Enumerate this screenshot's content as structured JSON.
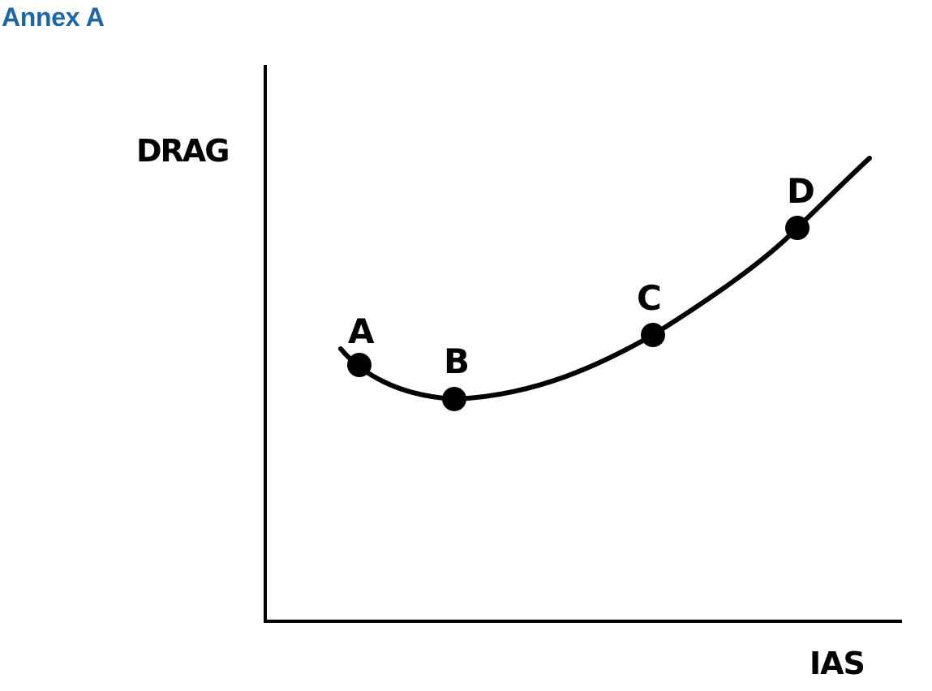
{
  "heading": "Annex A",
  "diagram": {
    "y_axis_label": "DRAG",
    "x_axis_label": "IAS",
    "curve_color": "#000000",
    "points": [
      {
        "label": "A"
      },
      {
        "label": "B"
      },
      {
        "label": "C"
      },
      {
        "label": "D"
      }
    ]
  }
}
